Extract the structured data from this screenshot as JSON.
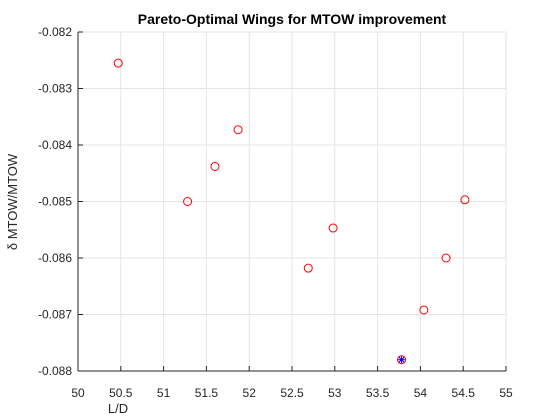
{
  "chart_data": {
    "type": "scatter",
    "title": "Pareto-Optimal Wings for MTOW improvement",
    "xlabel": "L/D",
    "ylabel": "δ MTOW/MTOW",
    "xlim": [
      50,
      55
    ],
    "ylim": [
      -0.088,
      -0.082
    ],
    "x_ticks": [
      50,
      50.5,
      51,
      51.5,
      52,
      52.5,
      53,
      53.5,
      54,
      54.5,
      55
    ],
    "x_tick_labels": [
      "50",
      "50.5",
      "51",
      "51.5",
      "52",
      "52.5",
      "53",
      "53.5",
      "54",
      "54.5",
      "55"
    ],
    "y_ticks": [
      -0.088,
      -0.087,
      -0.086,
      -0.085,
      -0.084,
      -0.083,
      -0.082
    ],
    "y_tick_labels": [
      "-0.088",
      "-0.087",
      "-0.086",
      "-0.085",
      "-0.084",
      "-0.083",
      "-0.082"
    ],
    "grid": true,
    "series": [
      {
        "marker": "circle",
        "color": "#ff0000",
        "points": [
          {
            "x": 50.47,
            "y": -0.08255
          },
          {
            "x": 51.28,
            "y": -0.085
          },
          {
            "x": 51.6,
            "y": -0.08438
          },
          {
            "x": 51.87,
            "y": -0.08373
          },
          {
            "x": 52.69,
            "y": -0.08618
          },
          {
            "x": 52.98,
            "y": -0.08547
          },
          {
            "x": 53.78,
            "y": -0.0878
          },
          {
            "x": 54.04,
            "y": -0.08692
          },
          {
            "x": 54.3,
            "y": -0.086
          },
          {
            "x": 54.52,
            "y": -0.08497
          }
        ]
      },
      {
        "marker": "asterisk",
        "color": "#0000ff",
        "points": [
          {
            "x": 53.78,
            "y": -0.0878
          }
        ]
      }
    ]
  }
}
